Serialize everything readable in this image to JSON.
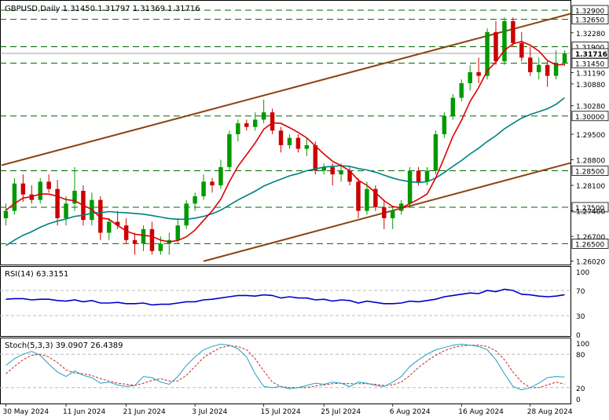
{
  "colors": {
    "bull": "#009900",
    "bear": "#cc0000",
    "channel": "#8b4513",
    "sma_fast": "#dd0000",
    "sma_slow": "#008080",
    "rsi": "#0000cc",
    "stoch_k": "#20a0c0",
    "stoch_d": "#cc2222",
    "hline": "#006600",
    "grid": "#bbbbbb",
    "text": "#000000"
  },
  "chart_data": [
    {
      "type": "candlestick",
      "header": "GBPUSD,Daily  1.31450 1.31797 1.31369 1.31716",
      "ylim": [
        1.2595,
        1.3305
      ],
      "y_ticks": [
        "1.32280",
        "1.31190",
        "1.30880",
        "1.30280",
        "1.29500",
        "1.28800",
        "1.28100",
        "1.27400",
        "1.26700",
        "1.26020"
      ],
      "levels": [
        {
          "label": "1.32900",
          "value": 1.329
        },
        {
          "label": "1.32650",
          "value": 1.3265
        },
        {
          "label": "1.31900",
          "value": 1.319
        },
        {
          "label": "1.31450",
          "value": 1.3145
        },
        {
          "label": "1.30000",
          "value": 1.3
        },
        {
          "label": "1.28500",
          "value": 1.285
        },
        {
          "label": "1.27500",
          "value": 1.275
        },
        {
          "label": "1.26500",
          "value": 1.265
        }
      ],
      "current_price": {
        "label": "1.31716",
        "value": 1.31716
      },
      "channel_upper": [
        [
          0,
          1.2865
        ],
        [
          65,
          1.3276
        ]
      ],
      "channel_lower": [
        [
          23,
          1.2602
        ],
        [
          65,
          1.2867
        ]
      ],
      "ohlc": [
        [
          1.272,
          1.276,
          1.27,
          1.274
        ],
        [
          1.274,
          1.283,
          1.273,
          1.2815
        ],
        [
          1.2815,
          1.284,
          1.2765,
          1.2785
        ],
        [
          1.2785,
          1.281,
          1.276,
          1.277
        ],
        [
          1.277,
          1.283,
          1.276,
          1.282
        ],
        [
          1.282,
          1.284,
          1.279,
          1.28
        ],
        [
          1.28,
          1.2825,
          1.27,
          1.272
        ],
        [
          1.272,
          1.278,
          1.27,
          1.276
        ],
        [
          1.276,
          1.286,
          1.274,
          1.2795
        ],
        [
          1.2795,
          1.281,
          1.27,
          1.2715
        ],
        [
          1.2715,
          1.279,
          1.27,
          1.277
        ],
        [
          1.277,
          1.278,
          1.266,
          1.268
        ],
        [
          1.268,
          1.272,
          1.266,
          1.271
        ],
        [
          1.271,
          1.274,
          1.269,
          1.27
        ],
        [
          1.27,
          1.272,
          1.265,
          1.266
        ],
        [
          1.266,
          1.268,
          1.262,
          1.265
        ],
        [
          1.265,
          1.27,
          1.263,
          1.269
        ],
        [
          1.269,
          1.271,
          1.262,
          1.263
        ],
        [
          1.263,
          1.267,
          1.262,
          1.265
        ],
        [
          1.265,
          1.268,
          1.262,
          1.266
        ],
        [
          1.266,
          1.272,
          1.265,
          1.27
        ],
        [
          1.27,
          1.277,
          1.269,
          1.276
        ],
        [
          1.276,
          1.279,
          1.274,
          1.278
        ],
        [
          1.278,
          1.284,
          1.277,
          1.282
        ],
        [
          1.282,
          1.283,
          1.279,
          1.281
        ],
        [
          1.281,
          1.288,
          1.28,
          1.286
        ],
        [
          1.286,
          1.296,
          1.285,
          1.295
        ],
        [
          1.295,
          1.299,
          1.293,
          1.298
        ],
        [
          1.298,
          1.299,
          1.296,
          1.297
        ],
        [
          1.297,
          1.301,
          1.296,
          1.299
        ],
        [
          1.299,
          1.3045,
          1.298,
          1.301
        ],
        [
          1.301,
          1.302,
          1.295,
          1.296
        ],
        [
          1.296,
          1.297,
          1.29,
          1.292
        ],
        [
          1.292,
          1.295,
          1.291,
          1.294
        ],
        [
          1.294,
          1.295,
          1.29,
          1.291
        ],
        [
          1.291,
          1.294,
          1.289,
          1.292
        ],
        [
          1.292,
          1.293,
          1.284,
          1.285
        ],
        [
          1.285,
          1.287,
          1.284,
          1.286
        ],
        [
          1.286,
          1.287,
          1.281,
          1.284
        ],
        [
          1.284,
          1.287,
          1.282,
          1.285
        ],
        [
          1.285,
          1.286,
          1.281,
          1.282
        ],
        [
          1.282,
          1.283,
          1.272,
          1.274
        ],
        [
          1.274,
          1.282,
          1.273,
          1.28
        ],
        [
          1.28,
          1.281,
          1.274,
          1.275
        ],
        [
          1.275,
          1.277,
          1.269,
          1.272
        ],
        [
          1.272,
          1.275,
          1.269,
          1.274
        ],
        [
          1.274,
          1.277,
          1.273,
          1.276
        ],
        [
          1.276,
          1.286,
          1.275,
          1.285
        ],
        [
          1.285,
          1.286,
          1.281,
          1.282
        ],
        [
          1.282,
          1.286,
          1.281,
          1.285
        ],
        [
          1.285,
          1.296,
          1.284,
          1.295
        ],
        [
          1.295,
          1.301,
          1.294,
          1.3
        ],
        [
          1.3,
          1.306,
          1.299,
          1.305
        ],
        [
          1.305,
          1.31,
          1.304,
          1.309
        ],
        [
          1.309,
          1.314,
          1.307,
          1.312
        ],
        [
          1.312,
          1.316,
          1.309,
          1.311
        ],
        [
          1.311,
          1.324,
          1.31,
          1.323
        ],
        [
          1.323,
          1.326,
          1.314,
          1.315
        ],
        [
          1.315,
          1.327,
          1.314,
          1.326
        ],
        [
          1.326,
          1.327,
          1.319,
          1.32
        ],
        [
          1.32,
          1.323,
          1.315,
          1.316
        ],
        [
          1.316,
          1.319,
          1.311,
          1.312
        ],
        [
          1.312,
          1.316,
          1.31,
          1.314
        ],
        [
          1.314,
          1.315,
          1.308,
          1.311
        ],
        [
          1.311,
          1.318,
          1.31,
          1.3145
        ],
        [
          1.3145,
          1.31797,
          1.31369,
          1.31716
        ]
      ],
      "sma_fast": [
        1.2742,
        1.276,
        1.2775,
        1.2779,
        1.2786,
        1.2786,
        1.278,
        1.2771,
        1.2768,
        1.2755,
        1.2744,
        1.2721,
        1.2717,
        1.27,
        1.2685,
        1.2676,
        1.2673,
        1.267,
        1.266,
        1.2655,
        1.2659,
        1.2669,
        1.2687,
        1.2714,
        1.274,
        1.2772,
        1.282,
        1.2862,
        1.2894,
        1.2926,
        1.2964,
        1.2981,
        1.298,
        1.2968,
        1.2955,
        1.294,
        1.2918,
        1.2896,
        1.2876,
        1.2864,
        1.285,
        1.2824,
        1.281,
        1.279,
        1.2768,
        1.2752,
        1.2748,
        1.276,
        1.2772,
        1.2786,
        1.283,
        1.2886,
        1.2944,
        1.2988,
        1.304,
        1.3078,
        1.3124,
        1.3148,
        1.318,
        1.3198,
        1.3204,
        1.3194,
        1.3178,
        1.3152,
        1.314,
        1.3141
      ],
      "sma_slow": [
        1.2645,
        1.266,
        1.2673,
        1.2683,
        1.2695,
        1.2705,
        1.2712,
        1.2718,
        1.2725,
        1.2728,
        1.2734,
        1.2735,
        1.2738,
        1.2736,
        1.2735,
        1.2733,
        1.2731,
        1.2727,
        1.2723,
        1.2719,
        1.2717,
        1.2717,
        1.272,
        1.2725,
        1.2732,
        1.2742,
        1.2756,
        1.277,
        1.2782,
        1.2794,
        1.2808,
        1.2818,
        1.2827,
        1.2836,
        1.2842,
        1.285,
        1.2855,
        1.286,
        1.2862,
        1.2864,
        1.2862,
        1.2856,
        1.2852,
        1.2846,
        1.2838,
        1.283,
        1.2824,
        1.282,
        1.2818,
        1.282,
        1.283,
        1.2845,
        1.2862,
        1.2878,
        1.2896,
        1.2912,
        1.293,
        1.2946,
        1.2965,
        1.298,
        1.2994,
        1.3004,
        1.3012,
        1.302,
        1.3032,
        1.305
      ],
      "x_labels": [
        {
          "label": "30 May 2024",
          "index": 0
        },
        {
          "label": "11 Jun 2024",
          "index": 7
        },
        {
          "label": "21 Jun 2024",
          "index": 14
        },
        {
          "label": "3 Jul 2024",
          "index": 22
        },
        {
          "label": "15 Jul 2024",
          "index": 30
        },
        {
          "label": "25 Jul 2024",
          "index": 37
        },
        {
          "label": "6 Aug 2024",
          "index": 45
        },
        {
          "label": "16 Aug 2024",
          "index": 53
        },
        {
          "label": "28 Aug 2024",
          "index": 61
        }
      ]
    },
    {
      "type": "line",
      "header": "RSI(14) 63.3151",
      "ylim": [
        0,
        100
      ],
      "y_ticks": [
        "100",
        "70",
        "30",
        "0"
      ],
      "levels": [
        70,
        30
      ],
      "values": [
        56,
        57,
        57,
        55,
        56,
        56,
        54,
        53,
        55,
        52,
        54,
        50,
        50,
        51,
        49,
        49,
        50,
        47,
        48,
        48,
        50,
        52,
        52,
        55,
        56,
        58,
        60,
        62,
        62,
        61,
        63,
        62,
        58,
        60,
        58,
        58,
        55,
        56,
        53,
        55,
        54,
        50,
        53,
        51,
        49,
        49,
        50,
        53,
        52,
        54,
        56,
        60,
        62,
        64,
        66,
        65,
        70,
        68,
        72,
        70,
        64,
        63,
        61,
        60,
        61,
        63.3
      ]
    },
    {
      "type": "line",
      "header": "Stoch(5,3,3) 39.0907 26.4389",
      "ylim": [
        0,
        100
      ],
      "y_ticks": [
        "100",
        "80",
        "20",
        "0"
      ],
      "levels": [
        80,
        20
      ],
      "k": [
        60,
        72,
        80,
        85,
        78,
        62,
        48,
        40,
        50,
        42,
        38,
        28,
        30,
        25,
        22,
        24,
        40,
        38,
        30,
        26,
        40,
        60,
        75,
        88,
        94,
        98,
        96,
        90,
        75,
        45,
        22,
        20,
        22,
        18,
        20,
        24,
        28,
        26,
        30,
        28,
        22,
        30,
        28,
        24,
        22,
        30,
        40,
        58,
        70,
        80,
        88,
        92,
        96,
        98,
        96,
        94,
        88,
        70,
        45,
        22,
        16,
        20,
        28,
        38,
        40,
        39
      ],
      "d": [
        45,
        58,
        70,
        78,
        80,
        75,
        65,
        52,
        46,
        45,
        42,
        36,
        32,
        28,
        26,
        24,
        28,
        33,
        36,
        32,
        32,
        42,
        58,
        74,
        84,
        92,
        95,
        94,
        88,
        72,
        50,
        30,
        22,
        20,
        20,
        20,
        23,
        25,
        27,
        28,
        27,
        27,
        27,
        26,
        24,
        25,
        30,
        42,
        56,
        68,
        78,
        86,
        92,
        95,
        96,
        96,
        94,
        86,
        70,
        48,
        30,
        20,
        20,
        25,
        30,
        26.4
      ]
    }
  ]
}
